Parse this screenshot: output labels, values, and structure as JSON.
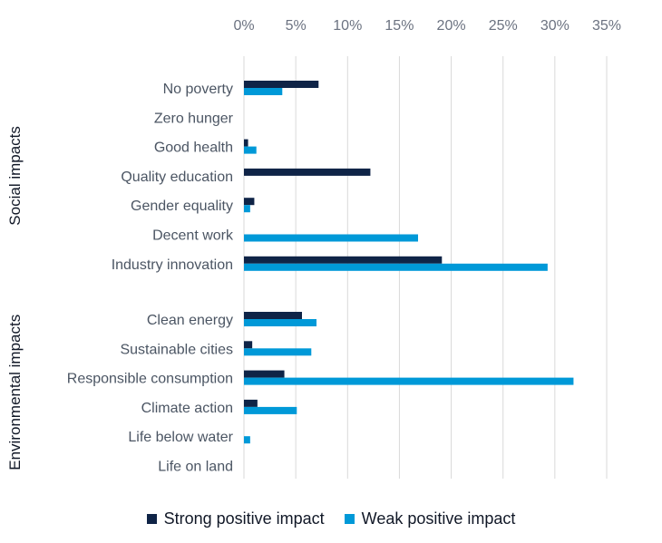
{
  "chart_data": {
    "type": "bar",
    "orientation": "horizontal",
    "xlim": [
      0,
      35
    ],
    "x_ticks": [
      "0%",
      "5%",
      "10%",
      "15%",
      "20%",
      "25%",
      "30%",
      "35%"
    ],
    "x_tick_values": [
      0,
      5,
      10,
      15,
      20,
      25,
      30,
      35
    ],
    "grid": true,
    "legend_position": "bottom",
    "groups": [
      {
        "label": "Social impacts",
        "categories": [
          "No poverty",
          "Zero hunger",
          "Good health",
          "Quality education",
          "Gender equality",
          "Decent work",
          "Industry innovation"
        ],
        "series": [
          {
            "name": "Strong positive impact",
            "values": [
              7.2,
              0,
              0.4,
              12.2,
              1.0,
              0,
              19.1
            ]
          },
          {
            "name": "Weak positive impact",
            "values": [
              3.7,
              0,
              1.2,
              0,
              0.6,
              16.8,
              29.3
            ]
          }
        ]
      },
      {
        "label": "Environmental impacts",
        "categories": [
          "Clean energy",
          "Sustainable cities",
          "Responsible consumption",
          "Climate action",
          "Life below water",
          "Life on land"
        ],
        "series": [
          {
            "name": "Strong positive impact",
            "values": [
              5.6,
              0.8,
              3.9,
              1.3,
              0,
              0
            ]
          },
          {
            "name": "Weak positive impact",
            "values": [
              7.0,
              6.5,
              31.8,
              5.1,
              0.6,
              0
            ]
          }
        ]
      }
    ],
    "colors": {
      "Strong positive impact": "#0f2447",
      "Weak positive impact": "#0099d8"
    }
  },
  "legend": {
    "items": [
      {
        "label": "Strong positive impact",
        "color": "#0f2447"
      },
      {
        "label": "Weak positive impact",
        "color": "#0099d8"
      }
    ]
  }
}
